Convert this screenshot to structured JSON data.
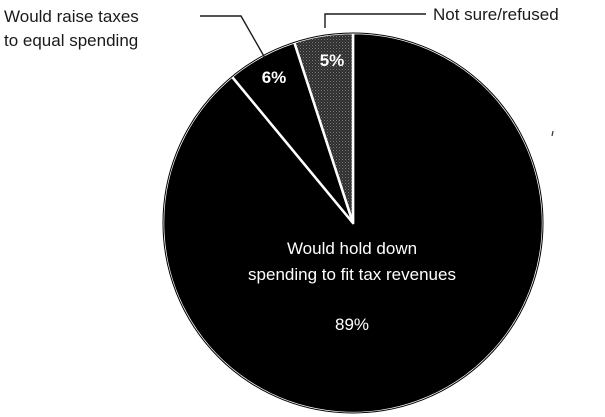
{
  "chart_data": {
    "type": "pie",
    "slices": [
      {
        "label_lines": [
          "Would hold down",
          "spending to fit tax revenues"
        ],
        "value": 89,
        "value_label": "89%",
        "color": "#000000"
      },
      {
        "label_lines": [
          "Would raise taxes",
          "to equal spending"
        ],
        "value": 6,
        "value_label": "6%",
        "color": "#000000"
      },
      {
        "label_lines": [
          "Not sure/refused"
        ],
        "value": 5,
        "value_label": "5%",
        "color": "#3a3a3a"
      }
    ],
    "start_angle": "12 o'clock",
    "direction": "clockwise"
  }
}
